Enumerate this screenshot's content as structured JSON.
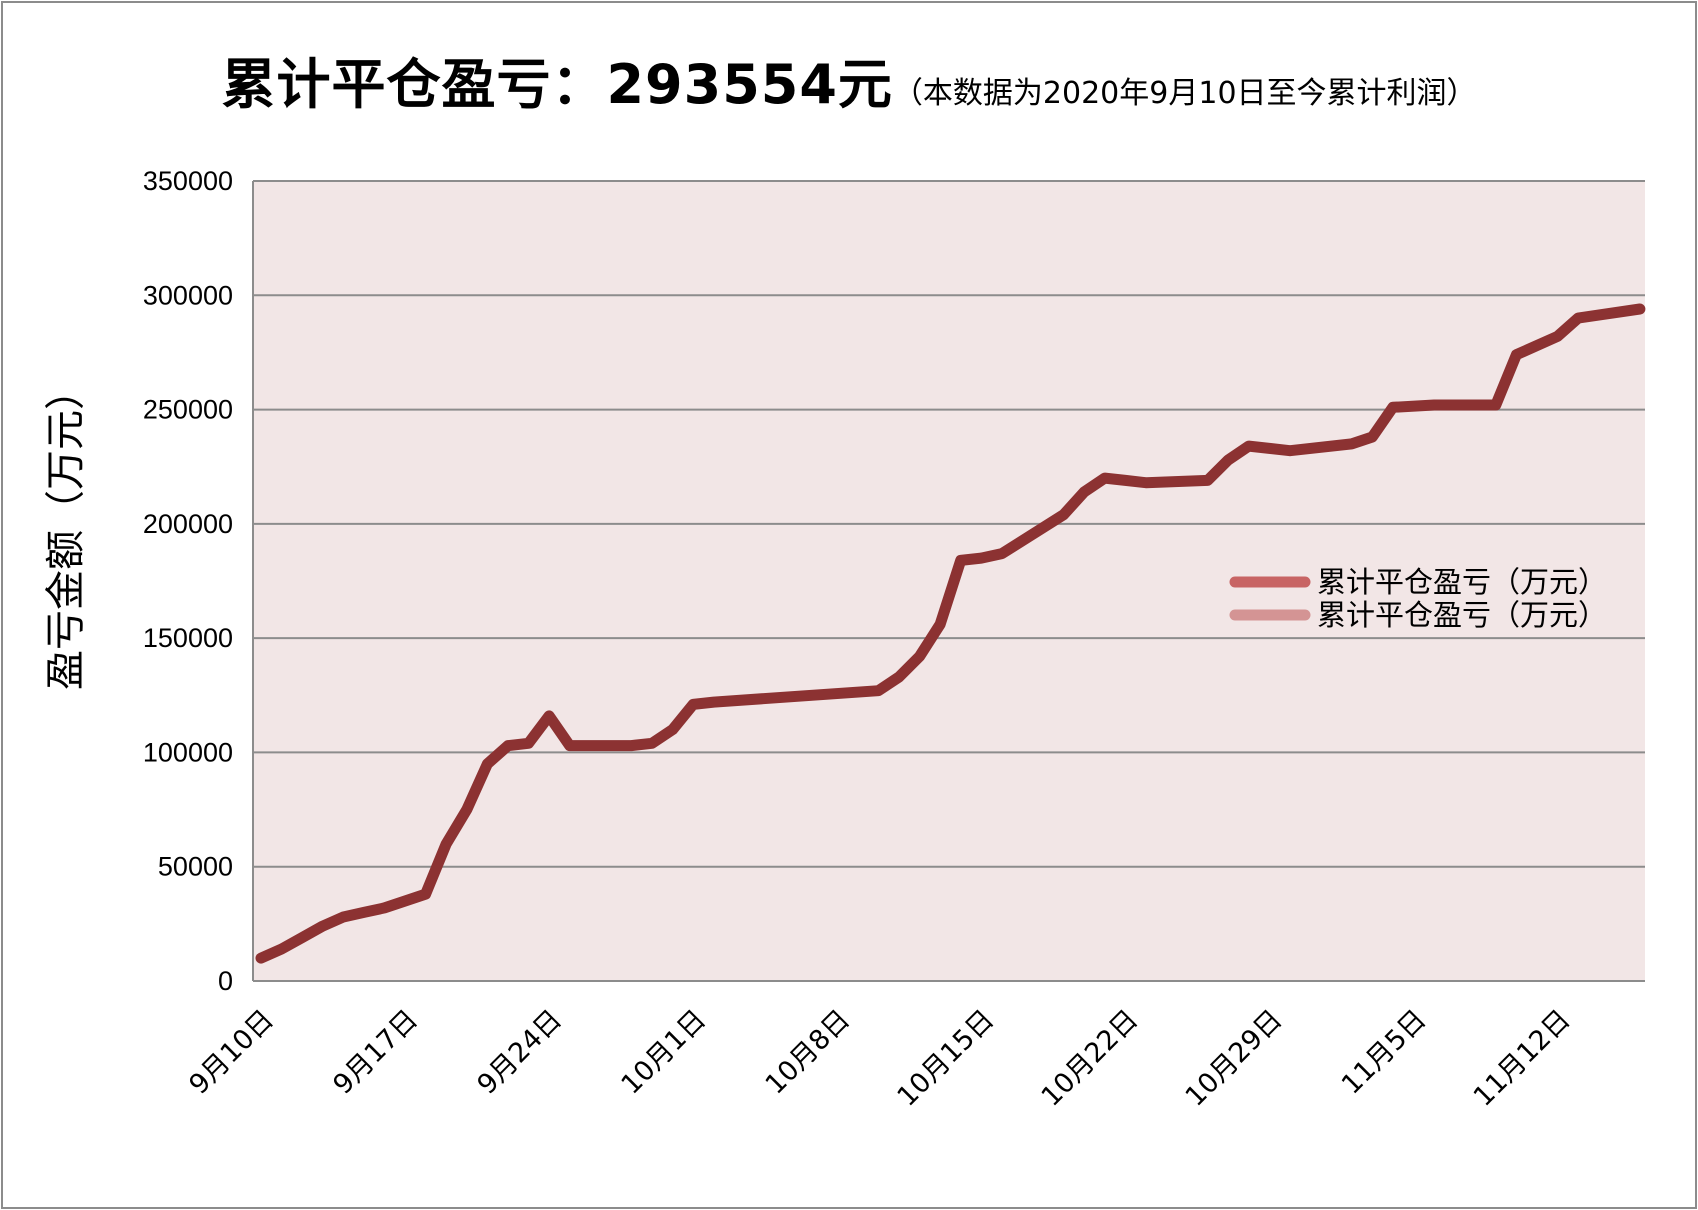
{
  "title": {
    "main": "累计平仓盈亏：293554元",
    "sub": "（本数据为2020年9月10日至今累计利润）"
  },
  "colors": {
    "plot_background": "#f2e6e6",
    "gridline": "#8c8c8c",
    "line": "#8c3232",
    "legend_1": "#c86464",
    "legend_2": "#d49494"
  },
  "chart_data": {
    "type": "line",
    "title": "累计平仓盈亏：293554元",
    "subtitle": "（本数据为2020年9月10日至今累计利润）",
    "ylabel": "盈亏金额（万元）",
    "xlabel": "",
    "ylim": [
      0,
      350000
    ],
    "y_ticks": [
      "0",
      "50000",
      "100000",
      "150000",
      "200000",
      "250000",
      "300000",
      "350000"
    ],
    "grid": true,
    "legend_position": "right",
    "x_tick_labels": [
      "9月10日",
      "9月17日",
      "9月24日",
      "10月1日",
      "10月8日",
      "10月15日",
      "10月22日",
      "10月29日",
      "11月5日",
      "11月12日"
    ],
    "x_start": "2020-09-10",
    "x_end": "2020-11-16",
    "legend": [
      "累计平仓盈亏（万元）",
      "累计平仓盈亏（万元）"
    ],
    "series": [
      {
        "name": "累计平仓盈亏（万元）",
        "x": [
          "2020-09-10",
          "2020-09-11",
          "2020-09-12",
          "2020-09-13",
          "2020-09-14",
          "2020-09-15",
          "2020-09-16",
          "2020-09-17",
          "2020-09-18",
          "2020-09-19",
          "2020-09-20",
          "2020-09-21",
          "2020-09-22",
          "2020-09-23",
          "2020-09-24",
          "2020-09-25",
          "2020-09-26",
          "2020-09-27",
          "2020-09-28",
          "2020-09-29",
          "2020-09-30",
          "2020-10-01",
          "2020-10-02",
          "2020-10-10",
          "2020-10-11",
          "2020-10-12",
          "2020-10-13",
          "2020-10-14",
          "2020-10-15",
          "2020-10-16",
          "2020-10-19",
          "2020-10-20",
          "2020-10-21",
          "2020-10-22",
          "2020-10-23",
          "2020-10-26",
          "2020-10-27",
          "2020-10-28",
          "2020-10-30",
          "2020-11-02",
          "2020-11-03",
          "2020-11-04",
          "2020-11-06",
          "2020-11-09",
          "2020-11-10",
          "2020-11-12",
          "2020-11-13",
          "2020-11-16"
        ],
        "values": [
          10000,
          14000,
          19000,
          24000,
          28000,
          30000,
          32000,
          35000,
          38000,
          60000,
          75000,
          95000,
          103000,
          104000,
          116000,
          103000,
          103000,
          103000,
          103000,
          104000,
          110000,
          121000,
          122000,
          127000,
          133000,
          142000,
          156000,
          184000,
          185000,
          187000,
          204000,
          214000,
          220000,
          219000,
          218000,
          219000,
          228000,
          234000,
          232000,
          235000,
          238000,
          251000,
          252000,
          252000,
          274000,
          282000,
          290000,
          294000
        ]
      }
    ]
  }
}
